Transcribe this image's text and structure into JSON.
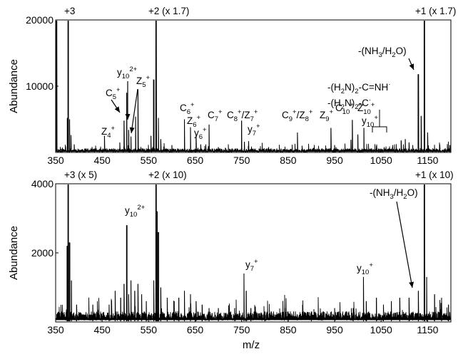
{
  "chart_data": [
    {
      "type": "line",
      "panel": "top",
      "ylabel": "Abundance",
      "xlabel": "",
      "xlim": [
        350,
        1200
      ],
      "ylim": [
        0,
        20000
      ],
      "x_ticks": [
        "350",
        "450",
        "550",
        "650",
        "750",
        "850",
        "950",
        "1050",
        "1150"
      ],
      "y_ticks": [
        {
          "value": 10000,
          "label": "10000"
        },
        {
          "value": 20000,
          "label": "20000"
        }
      ],
      "series": [
        {
          "peaks": [
            {
              "x": 352,
              "y": 20000
            },
            {
              "x": 375,
              "y": 5200
            },
            {
              "x": 377,
              "y": 20000
            },
            {
              "x": 380,
              "y": 5000
            },
            {
              "x": 383,
              "y": 2600
            },
            {
              "x": 390,
              "y": 1200
            },
            {
              "x": 455,
              "y": 2500
            },
            {
              "x": 488,
              "y": 1500
            },
            {
              "x": 497,
              "y": 4800
            },
            {
              "x": 503,
              "y": 9000
            },
            {
              "x": 507,
              "y": 3400
            },
            {
              "x": 512,
              "y": 2400
            },
            {
              "x": 522,
              "y": 5400
            },
            {
              "x": 527,
              "y": 9500
            },
            {
              "x": 555,
              "y": 2500
            },
            {
              "x": 561,
              "y": 11000
            },
            {
              "x": 566,
              "y": 20000
            },
            {
              "x": 571,
              "y": 5200
            },
            {
              "x": 576,
              "y": 2000
            },
            {
              "x": 600,
              "y": 1100
            },
            {
              "x": 627,
              "y": 5000
            },
            {
              "x": 640,
              "y": 3800
            },
            {
              "x": 652,
              "y": 2600
            },
            {
              "x": 662,
              "y": 1200
            },
            {
              "x": 680,
              "y": 4200
            },
            {
              "x": 700,
              "y": 800
            },
            {
              "x": 715,
              "y": 700
            },
            {
              "x": 750,
              "y": 4800
            },
            {
              "x": 756,
              "y": 1600
            },
            {
              "x": 765,
              "y": 1700
            },
            {
              "x": 808,
              "y": 800
            },
            {
              "x": 870,
              "y": 3000
            },
            {
              "x": 880,
              "y": 1000
            },
            {
              "x": 905,
              "y": 700
            },
            {
              "x": 942,
              "y": 3700
            },
            {
              "x": 950,
              "y": 1100
            },
            {
              "x": 985,
              "y": 1900
            },
            {
              "x": 988,
              "y": 4900
            },
            {
              "x": 1000,
              "y": 2700
            },
            {
              "x": 1013,
              "y": 3700
            },
            {
              "x": 1040,
              "y": 1000
            },
            {
              "x": 1075,
              "y": 1100
            },
            {
              "x": 1093,
              "y": 1800
            },
            {
              "x": 1102,
              "y": 2000
            },
            {
              "x": 1110,
              "y": 1500
            },
            {
              "x": 1118,
              "y": 1100
            },
            {
              "x": 1130,
              "y": 11800
            },
            {
              "x": 1136,
              "y": 5500
            },
            {
              "x": 1143,
              "y": 20000
            },
            {
              "x": 1150,
              "y": 3000
            },
            {
              "x": 1198,
              "y": 1100
            }
          ]
        }
      ],
      "labels": [
        {
          "id": "plus3",
          "parts": [
            {
              "t": "+3"
            }
          ]
        },
        {
          "id": "plus2",
          "parts": [
            {
              "t": "+2 (x 1.7)"
            }
          ]
        },
        {
          "id": "plus1",
          "parts": [
            {
              "t": "+1 (x 1.7)"
            }
          ]
        },
        {
          "id": "nh3",
          "parts": [
            {
              "t": "-(NH"
            },
            {
              "t": "3",
              "sub": true
            },
            {
              "t": "/H"
            },
            {
              "t": "2",
              "sub": true
            },
            {
              "t": "O)"
            }
          ]
        },
        {
          "id": "hn2cnh",
          "parts": [
            {
              "t": "-(H"
            },
            {
              "t": "2",
              "sub": true
            },
            {
              "t": "N)"
            },
            {
              "t": "2",
              "sub": true
            },
            {
              "t": "-C=NH"
            },
            {
              "t": "·",
              "sup": true
            }
          ]
        },
        {
          "id": "hn2c",
          "parts": [
            {
              "t": "-(H"
            },
            {
              "t": "2",
              "sub": true
            },
            {
              "t": "N)"
            },
            {
              "t": "2",
              "sub": true
            },
            {
              "t": "-C"
            },
            {
              "t": "·",
              "sup": true
            }
          ]
        },
        {
          "id": "y10_2",
          "parts": [
            {
              "t": "y"
            },
            {
              "t": "10",
              "sub": true
            },
            {
              "t": "2+",
              "sup": true
            }
          ]
        },
        {
          "id": "c5",
          "parts": [
            {
              "t": "C"
            },
            {
              "t": "5",
              "sub": true
            },
            {
              "t": "+",
              "sup": true
            }
          ]
        },
        {
          "id": "z5",
          "parts": [
            {
              "t": "Z"
            },
            {
              "t": "5",
              "sub": true
            },
            {
              "t": "+",
              "sup": true
            }
          ]
        },
        {
          "id": "z4",
          "parts": [
            {
              "t": "Z"
            },
            {
              "t": "4",
              "sub": true
            },
            {
              "t": "+",
              "sup": true
            }
          ]
        },
        {
          "id": "c6",
          "parts": [
            {
              "t": "C"
            },
            {
              "t": "6",
              "sub": true
            },
            {
              "t": "+",
              "sup": true
            }
          ]
        },
        {
          "id": "z6",
          "parts": [
            {
              "t": "Z"
            },
            {
              "t": "6",
              "sub": true
            },
            {
              "t": "+",
              "sup": true
            }
          ]
        },
        {
          "id": "y6",
          "parts": [
            {
              "t": "y"
            },
            {
              "t": "6",
              "sub": true
            },
            {
              "t": "+",
              "sup": true
            }
          ]
        },
        {
          "id": "c7",
          "parts": [
            {
              "t": "C"
            },
            {
              "t": "7",
              "sub": true
            },
            {
              "t": "+",
              "sup": true
            }
          ]
        },
        {
          "id": "c8z7",
          "parts": [
            {
              "t": "C"
            },
            {
              "t": "8",
              "sub": true
            },
            {
              "t": "+",
              "sup": true
            },
            {
              "t": "/Z"
            },
            {
              "t": "7",
              "sub": true
            },
            {
              "t": "+",
              "sup": true
            }
          ]
        },
        {
          "id": "y7",
          "parts": [
            {
              "t": "y"
            },
            {
              "t": "7",
              "sub": true
            },
            {
              "t": "+",
              "sup": true
            }
          ]
        },
        {
          "id": "c9z8",
          "parts": [
            {
              "t": "C"
            },
            {
              "t": "9",
              "sub": true
            },
            {
              "t": "+",
              "sup": true
            },
            {
              "t": "/Z"
            },
            {
              "t": "8",
              "sub": true
            },
            {
              "t": "+",
              "sup": true
            }
          ]
        },
        {
          "id": "z9",
          "parts": [
            {
              "t": "Z"
            },
            {
              "t": "9",
              "sub": true
            },
            {
              "t": "+",
              "sup": true
            }
          ]
        },
        {
          "id": "c10",
          "parts": [
            {
              "t": "C"
            },
            {
              "t": "10",
              "sub": true
            },
            {
              "t": "+",
              "sup": true
            }
          ]
        },
        {
          "id": "z10",
          "parts": [
            {
              "t": "Z"
            },
            {
              "t": "10",
              "sub": true
            },
            {
              "t": "+",
              "sup": true
            }
          ]
        },
        {
          "id": "y10",
          "parts": [
            {
              "t": "y"
            },
            {
              "t": "10",
              "sub": true
            },
            {
              "t": "+",
              "sup": true
            }
          ]
        }
      ]
    },
    {
      "type": "line",
      "panel": "bottom",
      "ylabel": "Abundance",
      "xlabel": "m/z",
      "xlim": [
        350,
        1200
      ],
      "ylim": [
        0,
        4000
      ],
      "x_ticks": [
        "350",
        "450",
        "550",
        "650",
        "750",
        "850",
        "950",
        "1050",
        "1150"
      ],
      "y_ticks": [
        {
          "value": 2000,
          "label": "2000"
        },
        {
          "value": 4000,
          "label": "4000"
        }
      ],
      "series": [
        {
          "peaks": [
            {
              "x": 375,
              "y": 2200
            },
            {
              "x": 377,
              "y": 4000
            },
            {
              "x": 380,
              "y": 2300
            },
            {
              "x": 384,
              "y": 1200
            },
            {
              "x": 395,
              "y": 500
            },
            {
              "x": 430,
              "y": 500
            },
            {
              "x": 465,
              "y": 500
            },
            {
              "x": 478,
              "y": 900
            },
            {
              "x": 490,
              "y": 700
            },
            {
              "x": 497,
              "y": 1100
            },
            {
              "x": 503,
              "y": 2800
            },
            {
              "x": 507,
              "y": 800
            },
            {
              "x": 512,
              "y": 1200
            },
            {
              "x": 520,
              "y": 900
            },
            {
              "x": 527,
              "y": 1100
            },
            {
              "x": 535,
              "y": 800
            },
            {
              "x": 545,
              "y": 600
            },
            {
              "x": 561,
              "y": 1200
            },
            {
              "x": 566,
              "y": 4000
            },
            {
              "x": 568,
              "y": 3200
            },
            {
              "x": 571,
              "y": 2600
            },
            {
              "x": 576,
              "y": 1000
            },
            {
              "x": 590,
              "y": 700
            },
            {
              "x": 605,
              "y": 600
            },
            {
              "x": 615,
              "y": 700
            },
            {
              "x": 627,
              "y": 900
            },
            {
              "x": 640,
              "y": 800
            },
            {
              "x": 652,
              "y": 600
            },
            {
              "x": 665,
              "y": 500
            },
            {
              "x": 680,
              "y": 400
            },
            {
              "x": 700,
              "y": 400
            },
            {
              "x": 735,
              "y": 400
            },
            {
              "x": 755,
              "y": 1400
            },
            {
              "x": 760,
              "y": 900
            },
            {
              "x": 770,
              "y": 400
            },
            {
              "x": 800,
              "y": 300
            },
            {
              "x": 850,
              "y": 300
            },
            {
              "x": 900,
              "y": 300
            },
            {
              "x": 950,
              "y": 400
            },
            {
              "x": 990,
              "y": 400
            },
            {
              "x": 1012,
              "y": 1300
            },
            {
              "x": 1018,
              "y": 600
            },
            {
              "x": 1040,
              "y": 700
            },
            {
              "x": 1055,
              "y": 500
            },
            {
              "x": 1072,
              "y": 600
            },
            {
              "x": 1090,
              "y": 700
            },
            {
              "x": 1110,
              "y": 700
            },
            {
              "x": 1130,
              "y": 900
            },
            {
              "x": 1143,
              "y": 4000
            },
            {
              "x": 1148,
              "y": 1300
            },
            {
              "x": 1165,
              "y": 800
            },
            {
              "x": 1180,
              "y": 700
            },
            {
              "x": 1195,
              "y": 500
            }
          ]
        }
      ],
      "labels": [
        {
          "id": "plus3",
          "parts": [
            {
              "t": "+3 (x 5)"
            }
          ]
        },
        {
          "id": "plus2",
          "parts": [
            {
              "t": "+2 (x 10)"
            }
          ]
        },
        {
          "id": "plus1",
          "parts": [
            {
              "t": "+1 (x 10)"
            }
          ]
        },
        {
          "id": "nh3",
          "parts": [
            {
              "t": "-(NH"
            },
            {
              "t": "3",
              "sub": true
            },
            {
              "t": "/H"
            },
            {
              "t": "2",
              "sub": true
            },
            {
              "t": "O)"
            }
          ]
        },
        {
          "id": "y10_2",
          "parts": [
            {
              "t": "y"
            },
            {
              "t": "10",
              "sub": true
            },
            {
              "t": "2+",
              "sup": true
            }
          ]
        },
        {
          "id": "y7",
          "parts": [
            {
              "t": "y"
            },
            {
              "t": "7",
              "sub": true
            },
            {
              "t": "+",
              "sup": true
            }
          ]
        },
        {
          "id": "y10",
          "parts": [
            {
              "t": "y"
            },
            {
              "t": "10",
              "sub": true
            },
            {
              "t": "+",
              "sup": true
            }
          ]
        }
      ]
    }
  ]
}
